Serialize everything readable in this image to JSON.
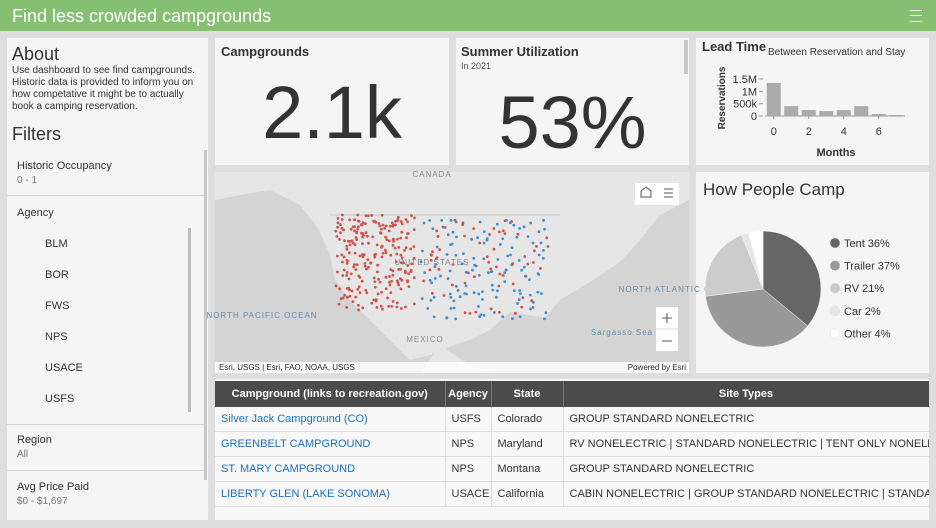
{
  "header": {
    "title": "Find less crowded campgrounds"
  },
  "about": {
    "title": "About",
    "text": "Use dashboard to see find campgrounds. Historic data is provided to inform you on how competative it might be to actually book a camping reservation."
  },
  "filters": {
    "title": "Filters",
    "historic_occupancy": {
      "label": "Historic Occupancy",
      "value": "0 - 1"
    },
    "agency": {
      "label": "Agency",
      "options": [
        "BLM",
        "BOR",
        "FWS",
        "NPS",
        "USACE",
        "USFS"
      ]
    },
    "region": {
      "label": "Region",
      "value": "All"
    },
    "avg_price": {
      "label": "Avg Price Paid",
      "value": "$0 - $1,697"
    }
  },
  "indicators": [
    {
      "title": "Campgrounds",
      "value": "2.1k"
    },
    {
      "title": "Summer Utilization",
      "subtitle": "In 2021",
      "value": "53%"
    }
  ],
  "lead_time": {
    "type": "bar",
    "title": "Lead Time",
    "subtitle": "Between Reservation and Stay",
    "x_label": "Months",
    "y_label": "Reservations",
    "x": [
      0,
      1,
      2,
      3,
      4,
      5,
      6,
      7
    ],
    "values": [
      1340000,
      400000,
      240000,
      200000,
      240000,
      400000,
      80000,
      40000
    ],
    "color": "#ababab",
    "xlim": [
      -0.5,
      7.5
    ],
    "xticks": [
      0,
      2,
      4,
      6
    ],
    "ylim": [
      0,
      1500000
    ],
    "yticks": [
      0,
      {
        "value": 500000,
        "label": "500k"
      },
      {
        "value": 1000000,
        "label": "1M"
      },
      {
        "value": 1500000,
        "label": "1.5M"
      }
    ]
  },
  "map": {
    "labels": [
      "CANADA",
      "UNITED STATES",
      "NORTH PACIFIC OCEAN",
      "NORTH ATLANTIC OCEAN",
      "Sargasso Sea",
      "MEXICO"
    ],
    "attribution": "Esri, USGS | Esri, FAO, NOAA, USGS",
    "powered_by": "Powered by Esri"
  },
  "pie": {
    "type": "pie",
    "title": "How People Camp",
    "categories": [
      "Tent",
      "Trailer",
      "RV",
      "Car",
      "Other"
    ],
    "values": [
      36,
      37,
      21,
      2,
      4
    ],
    "value_labels": [
      "36%",
      "37%",
      "21%",
      "2%",
      "4%"
    ],
    "colors": [
      "#666666",
      "#999999",
      "#cccccc",
      "#e6e6e6",
      "#ffffff"
    ]
  },
  "table": {
    "columns": [
      "Campground (links to recreation.gov)",
      "Agency",
      "State",
      "Site Types"
    ],
    "rows": [
      [
        "Silver Jack Campground (CO)",
        "USFS",
        "Colorado",
        "GROUP STANDARD NONELECTRIC"
      ],
      [
        "GREENBELT CAMPGROUND",
        "NPS",
        "Maryland",
        "RV NONELECTRIC | STANDARD NONELECTRIC | TENT ONLY NONELECTRIC"
      ],
      [
        "ST. MARY CAMPGROUND",
        "NPS",
        "Montana",
        "GROUP STANDARD NONELECTRIC"
      ],
      [
        "LIBERTY GLEN (LAKE SONOMA)",
        "USACE",
        "California",
        "CABIN NONELECTRIC | GROUP STANDARD NONELECTRIC | STANDARD NONELECTRIC"
      ]
    ]
  }
}
